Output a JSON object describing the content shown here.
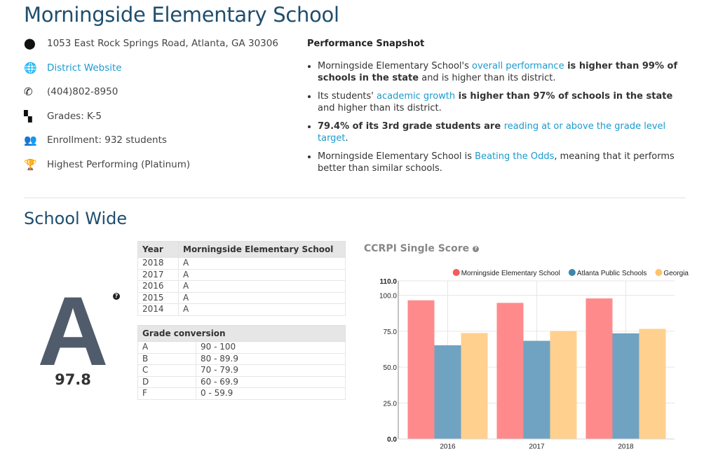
{
  "title": "Morningside Elementary School",
  "info": [
    {
      "icon": "map-marker-icon",
      "glyph": "⬤",
      "text": "1053 East Rock Springs Road, Atlanta, GA 30306",
      "link": false
    },
    {
      "icon": "globe-icon",
      "glyph": "🌐",
      "text": "District Website",
      "link": true
    },
    {
      "icon": "phone-icon",
      "glyph": "✆",
      "text": "(404)802-8950",
      "link": false
    },
    {
      "icon": "grades-icon",
      "glyph": "▚",
      "text": "Grades: K-5",
      "link": false
    },
    {
      "icon": "users-icon",
      "glyph": "👥",
      "text": "Enrollment: 932 students",
      "link": false
    },
    {
      "icon": "trophy-icon",
      "glyph": "🏆",
      "text": "Highest Performing (Platinum)",
      "link": false
    }
  ],
  "snapshot": {
    "title": "Performance Snapshot",
    "bullets": [
      [
        {
          "t": "Morningside Elementary School's ",
          "s": "n"
        },
        {
          "t": "overall performance",
          "s": "l"
        },
        {
          "t": " is higher than 99% of schools in the state",
          "s": "b"
        },
        {
          "t": " and is higher than its district.",
          "s": "n"
        }
      ],
      [
        {
          "t": "Its students' ",
          "s": "n"
        },
        {
          "t": "academic growth",
          "s": "l"
        },
        {
          "t": " is higher than 97% of schools in the state",
          "s": "b"
        },
        {
          "t": " and higher than its district.",
          "s": "n"
        }
      ],
      [
        {
          "t": "79.4% of its 3rd grade students are ",
          "s": "b"
        },
        {
          "t": "reading at or above the grade level target",
          "s": "l"
        },
        {
          "t": ".",
          "s": "n"
        }
      ],
      [
        {
          "t": "Morningside Elementary School is ",
          "s": "n"
        },
        {
          "t": "Beating the Odds",
          "s": "l"
        },
        {
          "t": ", meaning that it performs better than similar schools.",
          "s": "n"
        }
      ]
    ]
  },
  "section_title": "School Wide",
  "grade": {
    "letter": "A",
    "score": "97.8",
    "help": "?"
  },
  "history": {
    "headers": [
      "Year",
      "Morningside Elementary School"
    ],
    "rows": [
      [
        "2018",
        "A"
      ],
      [
        "2017",
        "A"
      ],
      [
        "2016",
        "A"
      ],
      [
        "2015",
        "A"
      ],
      [
        "2014",
        "A"
      ]
    ]
  },
  "conversion": {
    "header": "Grade conversion",
    "rows": [
      [
        "A",
        "90 - 100"
      ],
      [
        "B",
        "80 - 89.9"
      ],
      [
        "C",
        "70 - 79.9"
      ],
      [
        "D",
        "60 - 69.9"
      ],
      [
        "F",
        "0 - 59.9"
      ]
    ]
  },
  "chart_title": "CCRPI Single Score",
  "chart_data": {
    "type": "bar",
    "categories": [
      "2016",
      "2017",
      "2018"
    ],
    "series": [
      {
        "name": "Morningside Elementary School",
        "color": "#ff8a8c",
        "values": [
          96.5,
          94.7,
          97.8
        ]
      },
      {
        "name": "Atlanta Public Schools",
        "color": "#6fa3c1",
        "values": [
          65.2,
          68.3,
          73.5
        ]
      },
      {
        "name": "Georgia",
        "color": "#ffd08e",
        "values": [
          73.7,
          75.1,
          76.6
        ]
      }
    ],
    "legend_colors": [
      "#f45b5b",
      "#3d87ad",
      "#ffc36b"
    ],
    "yticks": [
      "0.0",
      "25.0",
      "50.0",
      "75.0",
      "100.0",
      "110.0"
    ],
    "ytick_values": [
      0,
      25,
      50,
      75,
      100,
      110
    ],
    "ylim": [
      0,
      110
    ],
    "grid": true,
    "legend_position": "top"
  }
}
